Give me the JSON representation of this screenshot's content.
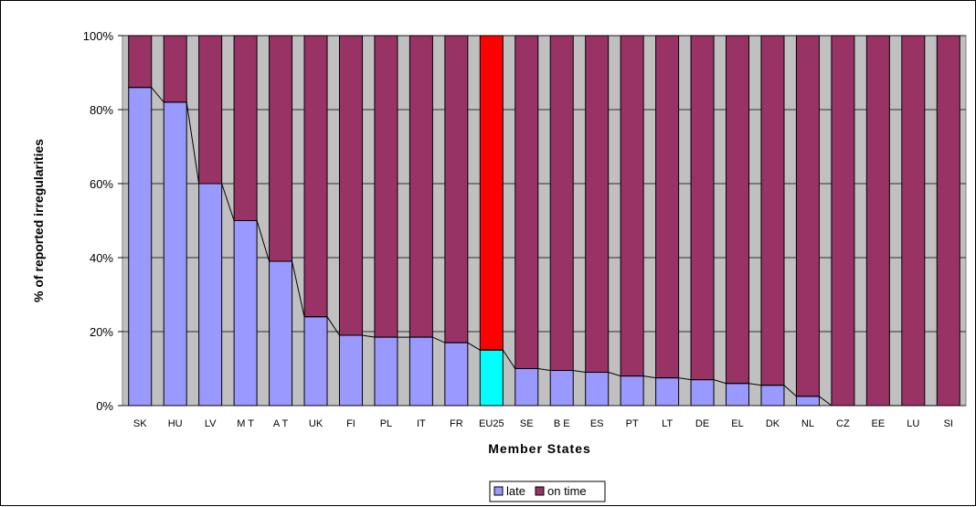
{
  "chart_data": {
    "type": "bar",
    "stacked": true,
    "normalized": true,
    "title": "",
    "xlabel": "Member States",
    "ylabel": "% of reported irregularities",
    "ylim": [
      0,
      100
    ],
    "yticks": [
      "0%",
      "20%",
      "40%",
      "60%",
      "80%",
      "100%"
    ],
    "categories": [
      "SK",
      "HU",
      "LV",
      "MT",
      "AT",
      "UK",
      "FI",
      "PL",
      "IT",
      "FR",
      "EU25",
      "SE",
      "BE",
      "ES",
      "PT",
      "LT",
      "DE",
      "EL",
      "DK",
      "NL",
      "CZ",
      "EE",
      "LU",
      "SI"
    ],
    "category_labels": [
      "SK",
      "HU",
      "LV",
      "M T",
      "A T",
      "UK",
      "FI",
      "PL",
      "IT",
      "FR",
      "EU25",
      "SE",
      "B E",
      "ES",
      "PT",
      "LT",
      "DE",
      "EL",
      "DK",
      "NL",
      "CZ",
      "EE",
      "LU",
      "SI"
    ],
    "series": [
      {
        "name": "late",
        "color": "#9999ff",
        "values": [
          86,
          82,
          60,
          50,
          39,
          24,
          19,
          18.5,
          18.5,
          17,
          15,
          10,
          9.5,
          9,
          8,
          7.5,
          7,
          6,
          5.5,
          2.5,
          0,
          0,
          0,
          0
        ]
      },
      {
        "name": "on time",
        "color": "#993366",
        "values": [
          14,
          18,
          40,
          50,
          61,
          76,
          81,
          81.5,
          81.5,
          83,
          85,
          90,
          90.5,
          91,
          92,
          92.5,
          93,
          94,
          94.5,
          97.5,
          100,
          100,
          100,
          100
        ]
      }
    ],
    "highlight": {
      "category": "EU25",
      "late_color": "#00ffff",
      "on_time_color": "#ff0000"
    },
    "trend_line": "late",
    "plot_background": "#c0c0c0",
    "grid": true,
    "legend_position": "bottom"
  }
}
